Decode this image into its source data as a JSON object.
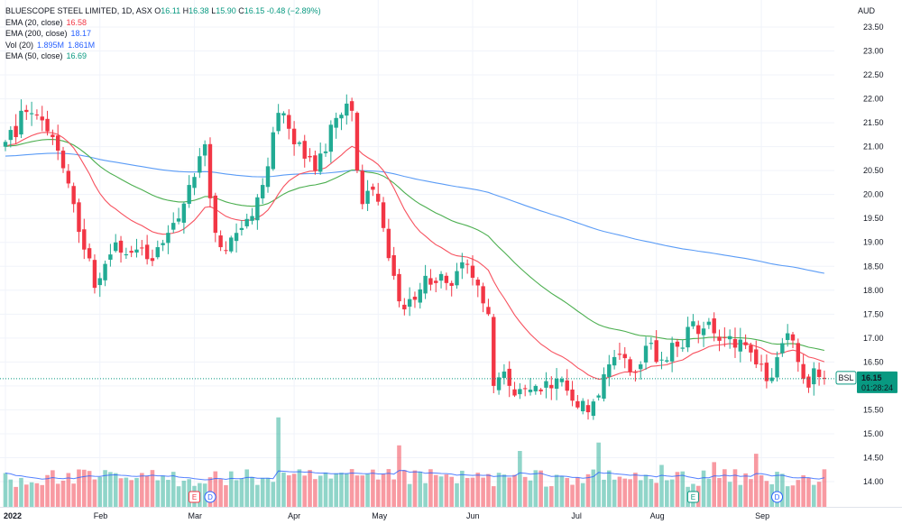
{
  "header": {
    "symbol_title": "BLUESCOPE STEEL LIMITED, 1D, ASX",
    "ohlc": [
      {
        "key": "O",
        "value": "16.11"
      },
      {
        "key": "H",
        "value": "16.38"
      },
      {
        "key": "L",
        "value": "15.90"
      },
      {
        "key": "C",
        "value": "16.15"
      }
    ],
    "change": "-0.48 (−2.89%)",
    "currency": "AUD"
  },
  "indicators": [
    {
      "label": "EMA (20, close)",
      "values": [
        "16.58"
      ],
      "color": "#f23645"
    },
    {
      "label": "EMA (200, close)",
      "values": [
        "18.17"
      ],
      "color": "#2962ff"
    },
    {
      "label": "Vol (20)",
      "values": [
        "1.895M",
        "1.861M"
      ],
      "color": "#2962ff"
    },
    {
      "label": "EMA (50, close)",
      "values": [
        "16.69"
      ],
      "color": "#089981"
    }
  ],
  "price_tag": {
    "symbol": "BSL",
    "price": "16.15",
    "countdown": "01:28:24",
    "color": "#089981"
  },
  "colors": {
    "up": "#22ab94",
    "down": "#f23645",
    "ema20": "#f7525f",
    "ema50": "#4caf50",
    "ema200": "#5b9cf6",
    "volma": "#2962ff",
    "grid": "#f0f3fa"
  },
  "chart_data": {
    "type": "candlestick",
    "title": "BLUESCOPE STEEL LIMITED, 1D, ASX",
    "y_axis_labels": [
      "14.00",
      "14.50",
      "15.00",
      "15.50",
      "16.00",
      "16.50",
      "17.00",
      "17.50",
      "18.00",
      "18.50",
      "19.00",
      "19.50",
      "20.00",
      "20.50",
      "21.00",
      "21.50",
      "22.00",
      "22.50",
      "23.00",
      "23.50"
    ],
    "ylim": [
      13.7,
      23.7
    ],
    "x_axis_labels": [
      {
        "label": "2022",
        "bar": 0
      },
      {
        "label": "Feb",
        "bar": 18
      },
      {
        "label": "Mar",
        "bar": 36
      },
      {
        "label": "Apr",
        "bar": 55
      },
      {
        "label": "May",
        "bar": 71
      },
      {
        "label": "Jun",
        "bar": 89
      },
      {
        "label": "Jul",
        "bar": 109
      },
      {
        "label": "Aug",
        "bar": 124
      },
      {
        "label": "Sep",
        "bar": 144
      }
    ],
    "bar_count": 157,
    "close_anchors": [
      [
        0,
        21.1
      ],
      [
        2,
        21.2
      ],
      [
        3,
        21.75
      ],
      [
        5,
        21.7
      ],
      [
        7,
        21.55
      ],
      [
        9,
        21.2
      ],
      [
        11,
        20.55
      ],
      [
        13,
        19.8
      ],
      [
        15,
        18.85
      ],
      [
        17,
        18.05
      ],
      [
        19,
        18.55
      ],
      [
        21,
        19.0
      ],
      [
        23,
        18.75
      ],
      [
        25,
        18.85
      ],
      [
        27,
        18.65
      ],
      [
        29,
        18.9
      ],
      [
        31,
        19.2
      ],
      [
        33,
        19.5
      ],
      [
        35,
        20.2
      ],
      [
        37,
        20.8
      ],
      [
        38,
        21.05
      ],
      [
        40,
        19.2
      ],
      [
        41,
        18.9
      ],
      [
        43,
        19.1
      ],
      [
        45,
        19.3
      ],
      [
        47,
        19.55
      ],
      [
        49,
        20.2
      ],
      [
        51,
        21.3
      ],
      [
        53,
        21.7
      ],
      [
        55,
        21.05
      ],
      [
        57,
        20.75
      ],
      [
        59,
        20.5
      ],
      [
        61,
        20.9
      ],
      [
        63,
        21.6
      ],
      [
        65,
        21.9
      ],
      [
        66,
        21.75
      ],
      [
        67,
        20.5
      ],
      [
        68,
        19.8
      ],
      [
        70,
        20.1
      ],
      [
        72,
        19.3
      ],
      [
        74,
        18.3
      ],
      [
        76,
        17.6
      ],
      [
        78,
        17.8
      ],
      [
        80,
        18.3
      ],
      [
        82,
        18.15
      ],
      [
        84,
        18.15
      ],
      [
        86,
        18.4
      ],
      [
        88,
        18.55
      ],
      [
        90,
        18.1
      ],
      [
        92,
        17.5
      ],
      [
        93,
        16.0
      ],
      [
        95,
        16.3
      ],
      [
        97,
        15.8
      ],
      [
        99,
        15.95
      ],
      [
        101,
        16.0
      ],
      [
        103,
        16.1
      ],
      [
        105,
        16.15
      ],
      [
        107,
        15.9
      ],
      [
        109,
        15.55
      ],
      [
        111,
        15.45
      ],
      [
        113,
        15.8
      ],
      [
        115,
        16.45
      ],
      [
        117,
        16.65
      ],
      [
        119,
        16.3
      ],
      [
        121,
        16.45
      ],
      [
        123,
        16.9
      ],
      [
        125,
        16.55
      ],
      [
        127,
        16.9
      ],
      [
        129,
        16.8
      ],
      [
        131,
        17.35
      ],
      [
        133,
        17.2
      ],
      [
        135,
        17.1
      ],
      [
        137,
        17.0
      ],
      [
        139,
        16.8
      ],
      [
        141,
        16.85
      ],
      [
        143,
        16.45
      ],
      [
        145,
        16.1
      ],
      [
        147,
        16.6
      ],
      [
        149,
        17.1
      ],
      [
        151,
        16.5
      ],
      [
        152,
        16.15
      ]
    ],
    "series": [
      {
        "name": "EMA (20, close)",
        "last": 16.58
      },
      {
        "name": "EMA (200, close)",
        "last": 18.17
      },
      {
        "name": "EMA (50, close)",
        "last": 16.69
      },
      {
        "name": "Vol (20)",
        "last": [
          1.895,
          1.861
        ]
      }
    ],
    "last_price": 16.15,
    "event_markers": [
      {
        "label": "E",
        "bar": 36,
        "kind": "earnings",
        "color": "#f23645"
      },
      {
        "label": "D",
        "bar": 39,
        "kind": "dividend",
        "color": "#2962ff"
      },
      {
        "label": "E",
        "bar": 131,
        "kind": "earnings",
        "color": "#089981"
      },
      {
        "label": "D",
        "bar": 147,
        "kind": "dividend",
        "color": "#2962ff"
      }
    ],
    "volume_spikes": [
      [
        52,
        3.2
      ],
      [
        75,
        2.2
      ],
      [
        98,
        2.0
      ],
      [
        113,
        2.3
      ],
      [
        125,
        1.5
      ],
      [
        135,
        1.6
      ],
      [
        143,
        1.9
      ]
    ]
  }
}
